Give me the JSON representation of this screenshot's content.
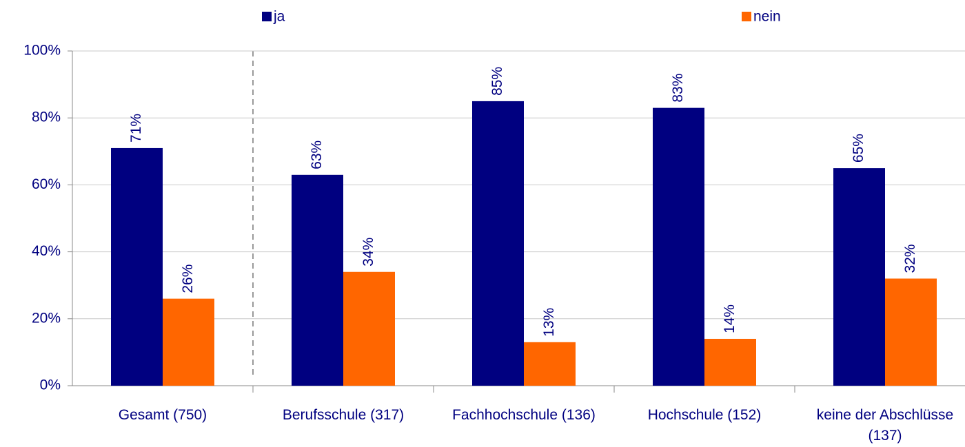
{
  "chart_data": {
    "type": "bar",
    "categories": [
      "Gesamt (750)",
      "Berufsschule (317)",
      "Fachhochschule (136)",
      "Hochschule (152)",
      "keine der Abschlüsse (137)"
    ],
    "series": [
      {
        "name": "ja",
        "color": "#000080",
        "values": [
          71,
          63,
          85,
          83,
          65
        ],
        "value_labels": [
          "71%",
          "63%",
          "85%",
          "83%",
          "65%"
        ]
      },
      {
        "name": "nein",
        "color": "#ff6600",
        "values": [
          26,
          34,
          13,
          14,
          32
        ],
        "value_labels": [
          "26%",
          "34%",
          "13%",
          "14%",
          "32%"
        ]
      }
    ],
    "ylim": [
      0,
      100
    ],
    "yticks": [
      {
        "value": 0,
        "label": "0%"
      },
      {
        "value": 20,
        "label": "20%"
      },
      {
        "value": 40,
        "label": "40%"
      },
      {
        "value": 60,
        "label": "60%"
      },
      {
        "value": 80,
        "label": "80%"
      },
      {
        "value": 100,
        "label": "100%"
      }
    ],
    "grid": true,
    "legend": "top"
  }
}
